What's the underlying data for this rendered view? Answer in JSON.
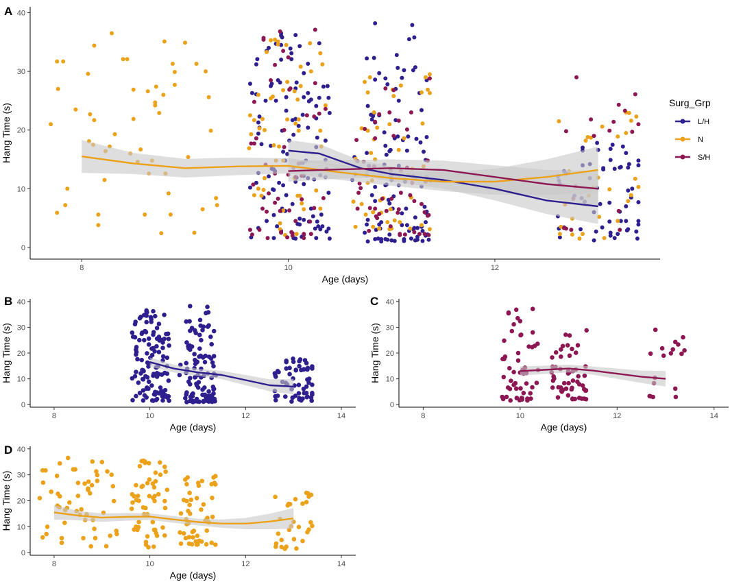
{
  "colors": {
    "L/H": "#2e1f8f",
    "N": "#eba21a",
    "S/H": "#8c1752",
    "band": "#c8c8c8",
    "axis": "#000000"
  },
  "legend": {
    "title": "Surg_Grp",
    "items": [
      {
        "key": "L/H",
        "label": "L/H"
      },
      {
        "key": "N",
        "label": "N"
      },
      {
        "key": "S/H",
        "label": "S/H"
      }
    ]
  },
  "chart_data": [
    {
      "panel": "A",
      "type": "scatter",
      "xlabel": "Age (days)",
      "ylabel": "Hang Time (s)",
      "xlim": [
        7.5,
        13.6
      ],
      "ylim": [
        -2,
        41
      ],
      "xticks": [
        8,
        10,
        12
      ],
      "yticks": [
        0,
        10,
        20,
        30,
        40
      ],
      "groups": [
        "L/H",
        "N",
        "S/H"
      ],
      "series": [
        {
          "name": "L/H",
          "smooth": {
            "x": [
              10.0,
              10.3,
              10.7,
              11.0,
              11.5,
              12.0,
              12.5,
              13.0
            ],
            "y": [
              16.5,
              16.0,
              13.5,
              12.5,
              11.5,
              10.0,
              8.0,
              7.0
            ],
            "se": [
              1.8,
              1.6,
              1.3,
              1.3,
              1.5,
              2.0,
              2.3,
              3.0
            ]
          }
        },
        {
          "name": "N",
          "smooth": {
            "x": [
              8.0,
              8.5,
              9.0,
              9.5,
              10.0,
              10.5,
              11.0,
              11.5,
              12.0,
              12.5,
              13.0
            ],
            "y": [
              15.5,
              14.3,
              13.5,
              13.8,
              13.9,
              12.8,
              11.8,
              11.2,
              11.2,
              12.0,
              13.2
            ],
            "se": [
              2.8,
              1.8,
              1.6,
              1.5,
              1.3,
              1.3,
              1.3,
              1.6,
              2.2,
              3.0,
              4.0
            ]
          }
        },
        {
          "name": "S/H",
          "smooth": {
            "x": [
              10.0,
              10.5,
              11.0,
              11.5,
              12.0,
              12.5,
              13.0
            ],
            "y": [
              13.0,
              13.3,
              13.5,
              13.2,
              12.0,
              10.8,
              10.0
            ],
            "se": [
              1.8,
              1.6,
              1.5,
              1.6,
              2.0,
              2.4,
              3.0
            ]
          }
        }
      ]
    },
    {
      "panel": "B",
      "type": "scatter",
      "group": "L/H",
      "xlabel": "Age (days)",
      "ylabel": "Hang Time (s)",
      "xlim": [
        7.5,
        14.3
      ],
      "ylim": [
        -1,
        41
      ],
      "xticks": [
        8,
        10,
        12,
        14
      ],
      "yticks": [
        0,
        10,
        20,
        30,
        40
      ],
      "smooth": {
        "x": [
          10.0,
          10.5,
          11.0,
          11.5,
          12.0,
          12.5,
          13.0
        ],
        "y": [
          16.5,
          14.0,
          12.5,
          11.5,
          9.5,
          7.5,
          7.0
        ],
        "se": [
          1.8,
          1.5,
          1.4,
          1.6,
          2.0,
          2.3,
          3.0
        ]
      }
    },
    {
      "panel": "C",
      "type": "scatter",
      "group": "S/H",
      "xlabel": "Age (days)",
      "ylabel": "Hang Time (s)",
      "xlim": [
        7.5,
        14.3
      ],
      "ylim": [
        -1,
        41
      ],
      "xticks": [
        8,
        10,
        12,
        14
      ],
      "yticks": [
        0,
        10,
        20,
        30,
        40
      ],
      "smooth": {
        "x": [
          10.0,
          10.5,
          11.0,
          11.5,
          12.0,
          12.5,
          13.0
        ],
        "y": [
          13.0,
          13.5,
          14.0,
          13.2,
          12.0,
          10.8,
          10.0
        ],
        "se": [
          1.8,
          1.6,
          1.5,
          1.6,
          2.0,
          2.4,
          3.0
        ]
      }
    },
    {
      "panel": "D",
      "type": "scatter",
      "group": "N",
      "xlabel": "Age (days)",
      "ylabel": "Hang Time (s)",
      "xlim": [
        7.5,
        14.3
      ],
      "ylim": [
        -1,
        41
      ],
      "xticks": [
        8,
        10,
        12,
        14
      ],
      "yticks": [
        0,
        10,
        20,
        30,
        40
      ],
      "smooth": {
        "x": [
          8.0,
          8.5,
          9.0,
          9.5,
          10.0,
          10.5,
          11.0,
          11.5,
          12.0,
          12.5,
          13.0
        ],
        "y": [
          15.5,
          14.3,
          13.5,
          13.8,
          13.9,
          12.8,
          11.8,
          11.2,
          11.2,
          12.0,
          13.2
        ],
        "se": [
          2.8,
          1.8,
          1.6,
          1.5,
          1.3,
          1.3,
          1.3,
          1.6,
          2.2,
          3.0,
          4.0
        ]
      }
    }
  ]
}
